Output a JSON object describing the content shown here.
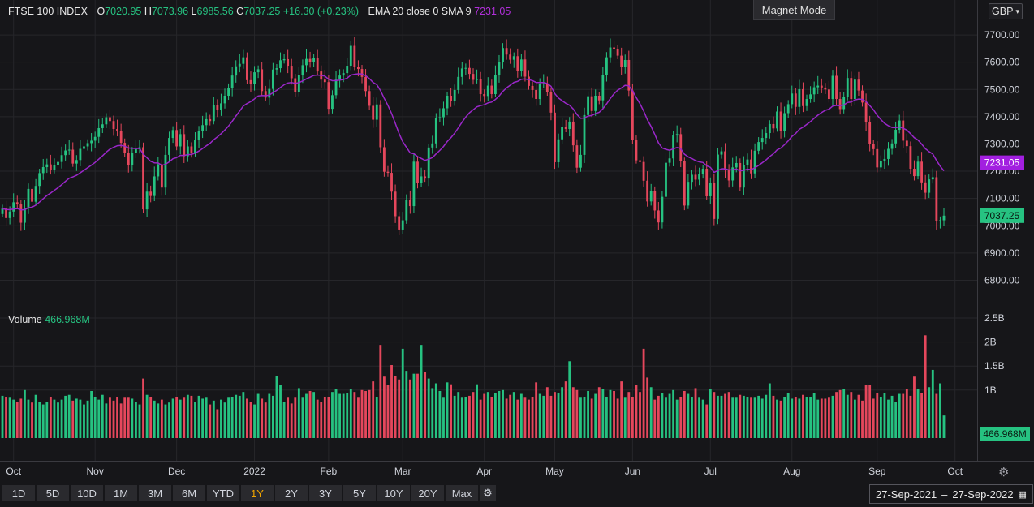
{
  "header": {
    "symbol": "FTSE 100 INDEX",
    "o_key": "O",
    "o_val": "7020.95",
    "h_key": "H",
    "h_val": "7073.96",
    "l_key": "L",
    "l_val": "6985.56",
    "c_key": "C",
    "c_val": "7037.25",
    "change": "+16.30 (+0.23%)",
    "indicator": "EMA 20 close 0 SMA 9",
    "indicator_value": "7231.05"
  },
  "magnet_label": "Magnet Mode",
  "currency": "GBP",
  "currency_chevron": "▾",
  "volume_label": "Volume",
  "volume_value": "466.968M",
  "price_badge": "7037.25",
  "ema_badge": "7231.05",
  "volume_badge": "466.968M",
  "periods": [
    "1D",
    "5D",
    "10D",
    "1M",
    "3M",
    "6M",
    "YTD",
    "1Y",
    "2Y",
    "3Y",
    "5Y",
    "10Y",
    "20Y",
    "Max"
  ],
  "active_period": "1Y",
  "settings_icon": "gear-icon",
  "date_range": {
    "from": "27-Sep-2021",
    "sep": "–",
    "to": "27-Sep-2022",
    "icon": "calendar-icon"
  },
  "colors": {
    "up": "#26c281",
    "down": "#e5475c",
    "ema": "#9a27c9",
    "bg": "#161619",
    "grid": "#26262a"
  },
  "chart_data": {
    "type": "candlestick",
    "price_axis": {
      "ticks": [
        6800,
        6900,
        7000,
        7100,
        7200,
        7300,
        7400,
        7500,
        7600,
        7700
      ],
      "tick_labels": [
        "6800.00",
        "6900.00",
        "7000.00",
        "7100.00",
        "7200.00",
        "7300.00",
        "7400.00",
        "7500.00",
        "7600.00",
        "7700.00"
      ],
      "ylim": [
        6720,
        7840
      ]
    },
    "volume_axis": {
      "ticks": [
        1,
        1.5,
        2,
        2.5
      ],
      "tick_labels": [
        "1B",
        "1.5B",
        "2B",
        "2.5B"
      ],
      "ylim": [
        0,
        2.5
      ]
    },
    "x_labels": [
      "Oct",
      "Nov",
      "Dec",
      "2022",
      "Feb",
      "Mar",
      "Apr",
      "May",
      "Jun",
      "Jul",
      "Aug",
      "Sep",
      "Oct"
    ],
    "x_label_trading_day_index": [
      3,
      25,
      47,
      68,
      88,
      108,
      130,
      149,
      170,
      191,
      213,
      236,
      257
    ],
    "series_name": "FTSE 100 INDEX",
    "close": [
      7063,
      7028,
      7052,
      7086,
      7078,
      7011,
      7065,
      7135,
      7088,
      7146,
      7193,
      7215,
      7225,
      7205,
      7221,
      7234,
      7259,
      7276,
      7279,
      7228,
      7241,
      7282,
      7291,
      7303,
      7312,
      7326,
      7358,
      7372,
      7398,
      7384,
      7355,
      7349,
      7304,
      7266,
      7223,
      7268,
      7281,
      7288,
      7060,
      7125,
      7109,
      7181,
      7225,
      7140,
      7260,
      7322,
      7351,
      7291,
      7336,
      7255,
      7291,
      7267,
      7314,
      7346,
      7369,
      7391,
      7384,
      7443,
      7426,
      7449,
      7477,
      7505,
      7551,
      7585,
      7594,
      7618,
      7534,
      7521,
      7563,
      7574,
      7494,
      7470,
      7502,
      7573,
      7578,
      7607,
      7611,
      7587,
      7541,
      7490,
      7554,
      7589,
      7612,
      7602,
      7614,
      7566,
      7536,
      7527,
      7429,
      7479,
      7536,
      7551,
      7560,
      7587,
      7660,
      7583,
      7575,
      7546,
      7494,
      7440,
      7389,
      7445,
      7288,
      7198,
      7194,
      7125,
      7035,
      6986,
      7020,
      7093,
      7072,
      7235,
      7157,
      7181,
      7173,
      7287,
      7302,
      7394,
      7398,
      7431,
      7477,
      7458,
      7498,
      7546,
      7577,
      7579,
      7557,
      7535,
      7538,
      7483,
      7476,
      7514,
      7483,
      7552,
      7599,
      7652,
      7628,
      7609,
      7622,
      7569,
      7610,
      7547,
      7513,
      7498,
      7465,
      7521,
      7522,
      7490,
      7415,
      7233,
      7317,
      7362,
      7355,
      7382,
      7295,
      7213,
      7260,
      7406,
      7475,
      7421,
      7477,
      7460,
      7554,
      7618,
      7654,
      7648,
      7624,
      7582,
      7608,
      7496,
      7315,
      7240,
      7234,
      7165,
      7089,
      7127,
      7056,
      7012,
      7106,
      7231,
      7247,
      7331,
      7336,
      7236,
      7074,
      7161,
      7187,
      7169,
      7189,
      7209,
      7108,
      7157,
      7025,
      7261,
      7273,
      7205,
      7166,
      7214,
      7230,
      7140,
      7224,
      7243,
      7192,
      7275,
      7307,
      7322,
      7340,
      7373,
      7357,
      7419,
      7347,
      7413,
      7446,
      7485,
      7436,
      7501,
      7439,
      7465,
      7482,
      7508,
      7514,
      7507,
      7500,
      7465,
      7550,
      7465,
      7428,
      7472,
      7542,
      7465,
      7536,
      7496,
      7452,
      7379,
      7299,
      7281,
      7214,
      7238,
      7245,
      7282,
      7302,
      7352,
      7386,
      7312,
      7292,
      7209,
      7182,
      7235,
      7159,
      7121,
      7170,
      7178,
      7016,
      7020,
      7037
    ],
    "volume_billions": [
      0.88,
      0.86,
      0.84,
      0.8,
      0.76,
      0.82,
      1.0,
      0.8,
      0.74,
      0.9,
      0.76,
      0.7,
      0.76,
      0.86,
      0.8,
      0.74,
      0.8,
      0.88,
      0.9,
      0.78,
      0.82,
      0.8,
      0.7,
      0.78,
      0.98,
      0.86,
      0.8,
      0.9,
      0.72,
      0.84,
      0.78,
      0.86,
      0.72,
      0.84,
      0.84,
      0.82,
      0.76,
      0.7,
      1.24,
      0.9,
      0.86,
      0.78,
      0.72,
      0.8,
      0.7,
      0.74,
      0.82,
      0.86,
      0.8,
      0.84,
      0.9,
      0.88,
      0.76,
      0.88,
      0.82,
      0.84,
      0.7,
      0.78,
      0.6,
      0.8,
      0.74,
      0.84,
      0.86,
      0.9,
      0.88,
      0.96,
      0.82,
      0.76,
      0.7,
      0.92,
      0.82,
      0.74,
      0.92,
      0.88,
      1.3,
      1.1,
      0.76,
      0.84,
      0.72,
      0.84,
      1.04,
      0.84,
      0.92,
      0.98,
      0.96,
      0.8,
      0.76,
      0.86,
      0.86,
      0.96,
      1.02,
      0.92,
      0.92,
      0.94,
      1.02,
      0.96,
      0.84,
      1.0,
      0.98,
      1.0,
      1.18,
      0.86,
      1.94,
      1.28,
      1.1,
      1.52,
      1.3,
      1.22,
      1.86,
      1.4,
      1.22,
      1.34,
      1.34,
      1.94,
      1.38,
      1.24,
      1.04,
      1.14,
      0.98,
      0.84,
      1.16,
      1.12,
      0.88,
      0.96,
      0.84,
      0.86,
      0.88,
      0.96,
      1.12,
      0.8,
      0.92,
      0.96,
      0.86,
      0.94,
      0.98,
      1.0,
      0.82,
      0.9,
      0.96,
      0.8,
      0.92,
      0.84,
      0.8,
      0.86,
      1.16,
      0.92,
      0.88,
      1.06,
      0.88,
      0.96,
      0.94,
      1.06,
      1.18,
      1.6,
      1.06,
      1.0,
      0.84,
      0.86,
      0.98,
      0.82,
      0.92,
      1.06,
      1.02,
      0.86,
      1.0,
      0.98,
      0.82,
      1.18,
      0.84,
      0.96,
      0.86,
      1.1,
      0.96,
      1.86,
      1.26,
      1.06,
      0.8,
      0.88,
      0.94,
      0.84,
      0.92,
      1.0,
      0.8,
      0.86,
      0.98,
      0.92,
      0.86,
      1.04,
      0.84,
      0.8,
      0.7,
      1.02,
      0.96,
      0.88,
      0.88,
      0.92,
      0.96,
      0.84,
      0.84,
      0.9,
      0.88,
      0.86,
      0.84,
      0.84,
      0.88,
      0.82,
      0.9,
      1.14,
      0.88,
      0.8,
      0.78,
      0.86,
      0.94,
      0.82,
      0.86,
      0.82,
      0.9,
      0.86,
      0.86,
      0.94,
      0.8,
      0.82,
      0.82,
      0.84,
      0.88,
      0.96,
      1.0,
      1.02,
      0.9,
      0.96,
      0.8,
      0.9,
      0.78,
      1.1,
      1.1,
      0.82,
      0.94,
      0.86,
      0.94,
      0.8,
      0.88,
      0.76,
      0.92,
      0.92,
      1.02,
      0.88,
      1.28,
      1.02,
      0.94,
      2.14,
      1.06,
      1.42,
      0.92,
      1.14,
      0.47
    ]
  }
}
